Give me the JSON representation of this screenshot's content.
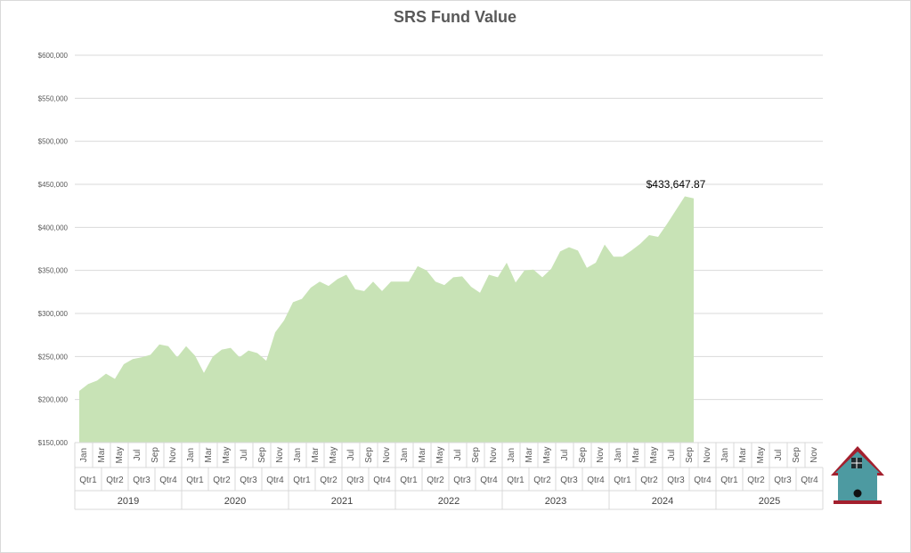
{
  "chart_data": {
    "type": "area",
    "title": "SRS Fund Value",
    "xlabel": "",
    "ylabel": "",
    "ylim": [
      150000,
      600000
    ],
    "y_ticks": [
      {
        "value": 150000,
        "label": "$150,000"
      },
      {
        "value": 200000,
        "label": "$200,000"
      },
      {
        "value": 250000,
        "label": "$250,000"
      },
      {
        "value": 300000,
        "label": "$300,000"
      },
      {
        "value": 350000,
        "label": "$350,000"
      },
      {
        "value": 400000,
        "label": "$400,000"
      },
      {
        "value": 450000,
        "label": "$450,000"
      },
      {
        "value": 500000,
        "label": "$500,000"
      },
      {
        "value": 550000,
        "label": "$550,000"
      },
      {
        "value": 600000,
        "label": "$600,000"
      }
    ],
    "grid": true,
    "legend": "none",
    "series_color": "#c8e3b6",
    "years": [
      "2019",
      "2020",
      "2021",
      "2022",
      "2023",
      "2024",
      "2025"
    ],
    "quarters": [
      "Qtr1",
      "Qtr2",
      "Qtr3",
      "Qtr4"
    ],
    "month_labels": [
      "Jan",
      "",
      "Mar",
      "",
      "May",
      "",
      "Jul",
      "",
      "Sep",
      "",
      "Nov",
      ""
    ],
    "values": [
      210000,
      218000,
      222000,
      230000,
      224000,
      241000,
      247000,
      249000,
      252000,
      264000,
      262000,
      249000,
      262000,
      251000,
      231000,
      250000,
      258000,
      260000,
      249000,
      257000,
      254000,
      245000,
      278000,
      292000,
      313000,
      317000,
      330000,
      337000,
      332000,
      340000,
      345000,
      328000,
      326000,
      337000,
      326000,
      337000,
      337000,
      337000,
      355000,
      350000,
      337000,
      333000,
      342000,
      343000,
      331000,
      324000,
      345000,
      342000,
      359000,
      336000,
      350000,
      351000,
      342000,
      352000,
      372000,
      377000,
      373000,
      353000,
      359000,
      380000,
      366000,
      366000,
      373000,
      381000,
      391000,
      389000,
      404000,
      420000,
      436000,
      433647.87
    ],
    "data_label": {
      "index": 69,
      "text": "$433,647.87"
    }
  }
}
